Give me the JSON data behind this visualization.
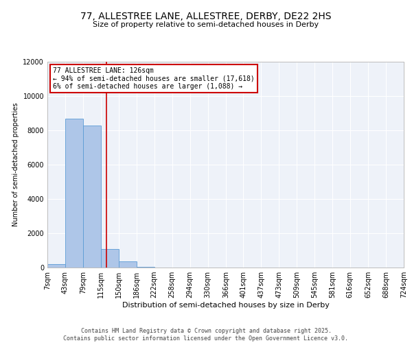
{
  "title_line1": "77, ALLESTREE LANE, ALLESTREE, DERBY, DE22 2HS",
  "title_line2": "Size of property relative to semi-detached houses in Derby",
  "xlabel": "Distribution of semi-detached houses by size in Derby",
  "ylabel": "Number of semi-detached properties",
  "footer_line1": "Contains HM Land Registry data © Crown copyright and database right 2025.",
  "footer_line2": "Contains public sector information licensed under the Open Government Licence v3.0.",
  "annotation_line1": "77 ALLESTREE LANE: 126sqm",
  "annotation_line2": "← 94% of semi-detached houses are smaller (17,618)",
  "annotation_line3": "6% of semi-detached houses are larger (1,088) →",
  "bin_labels": [
    "7sqm",
    "43sqm",
    "79sqm",
    "115sqm",
    "150sqm",
    "186sqm",
    "222sqm",
    "258sqm",
    "294sqm",
    "330sqm",
    "366sqm",
    "401sqm",
    "437sqm",
    "473sqm",
    "509sqm",
    "545sqm",
    "581sqm",
    "616sqm",
    "652sqm",
    "688sqm",
    "724sqm"
  ],
  "bin_edges": [
    7,
    43,
    79,
    115,
    150,
    186,
    222,
    258,
    294,
    330,
    366,
    401,
    437,
    473,
    509,
    545,
    581,
    616,
    652,
    688,
    724
  ],
  "bar_heights": [
    200,
    8700,
    8300,
    1100,
    350,
    50,
    10,
    0,
    0,
    0,
    0,
    0,
    0,
    0,
    0,
    0,
    0,
    0,
    0,
    0
  ],
  "bar_color": "#aec6e8",
  "bar_edgecolor": "#5b9bd5",
  "vline_color": "#cc0000",
  "vline_x": 126,
  "ylim": [
    0,
    12000
  ],
  "yticks": [
    0,
    2000,
    4000,
    6000,
    8000,
    10000,
    12000
  ],
  "background_color": "#eef2f9",
  "grid_color": "#ffffff",
  "annotation_box_color": "#cc0000",
  "title_fontsize": 10,
  "subtitle_fontsize": 8,
  "xlabel_fontsize": 8,
  "ylabel_fontsize": 7,
  "tick_fontsize": 7,
  "footer_fontsize": 6,
  "annot_fontsize": 7
}
